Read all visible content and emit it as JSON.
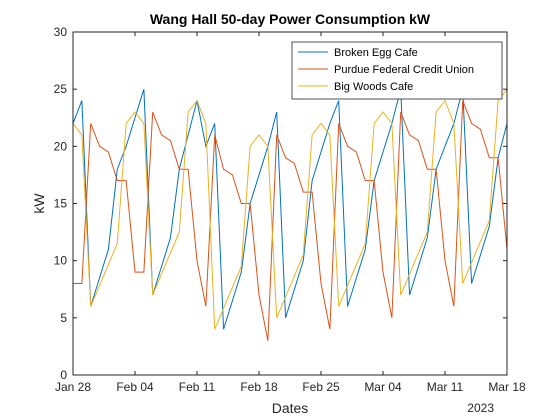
{
  "chart_data": {
    "type": "line",
    "title": "Wang Hall 50-day Power Consumption kW",
    "xlabel": "Dates",
    "ylabel": "kW",
    "year_label": "2023",
    "xlim": [
      "2023-01-28",
      "2023-03-18"
    ],
    "ylim": [
      0,
      30
    ],
    "x_ticks": [
      {
        "date": "2023-01-28",
        "label": "Jan 28"
      },
      {
        "date": "2023-02-04",
        "label": "Feb 04"
      },
      {
        "date": "2023-02-11",
        "label": "Feb 11"
      },
      {
        "date": "2023-02-18",
        "label": "Feb 18"
      },
      {
        "date": "2023-02-25",
        "label": "Feb 25"
      },
      {
        "date": "2023-03-04",
        "label": "Mar 04"
      },
      {
        "date": "2023-03-11",
        "label": "Mar 11"
      },
      {
        "date": "2023-03-18",
        "label": "Mar 18"
      }
    ],
    "y_ticks": [
      0,
      5,
      10,
      15,
      20,
      25,
      30
    ],
    "grid": false,
    "legend_position": "top-right",
    "series": [
      {
        "name": "Broken Egg Cafe",
        "color": "#0072BD",
        "points": [
          [
            "2023-01-28",
            22
          ],
          [
            "2023-01-29",
            24
          ],
          [
            "2023-01-30",
            6
          ],
          [
            "2023-02-01",
            11
          ],
          [
            "2023-02-02",
            18
          ],
          [
            "2023-02-03",
            20
          ],
          [
            "2023-02-05",
            25
          ],
          [
            "2023-02-06",
            7
          ],
          [
            "2023-02-08",
            12
          ],
          [
            "2023-02-09",
            18
          ],
          [
            "2023-02-11",
            24
          ],
          [
            "2023-02-12",
            20
          ],
          [
            "2023-02-13",
            22
          ],
          [
            "2023-02-14",
            4
          ],
          [
            "2023-02-16",
            9
          ],
          [
            "2023-02-17",
            15
          ],
          [
            "2023-02-19",
            20
          ],
          [
            "2023-02-20",
            23
          ],
          [
            "2023-02-21",
            5
          ],
          [
            "2023-02-23",
            10
          ],
          [
            "2023-02-24",
            17
          ],
          [
            "2023-02-26",
            22
          ],
          [
            "2023-02-27",
            24
          ],
          [
            "2023-02-28",
            6
          ],
          [
            "2023-03-02",
            11
          ],
          [
            "2023-03-03",
            17
          ],
          [
            "2023-03-05",
            22
          ],
          [
            "2023-03-06",
            25
          ],
          [
            "2023-03-07",
            7
          ],
          [
            "2023-03-09",
            12
          ],
          [
            "2023-03-10",
            18
          ],
          [
            "2023-03-12",
            22
          ],
          [
            "2023-03-13",
            25
          ],
          [
            "2023-03-14",
            8
          ],
          [
            "2023-03-16",
            13
          ],
          [
            "2023-03-17",
            19
          ],
          [
            "2023-03-18",
            22
          ]
        ]
      },
      {
        "name": "Purdue Federal Credit Union",
        "color": "#D95319",
        "points": [
          [
            "2023-01-28",
            8
          ],
          [
            "2023-01-29",
            8
          ],
          [
            "2023-01-30",
            22
          ],
          [
            "2023-01-31",
            20
          ],
          [
            "2023-02-01",
            19.5
          ],
          [
            "2023-02-02",
            17
          ],
          [
            "2023-02-03",
            17
          ],
          [
            "2023-02-04",
            9
          ],
          [
            "2023-02-05",
            9
          ],
          [
            "2023-02-06",
            23
          ],
          [
            "2023-02-07",
            21
          ],
          [
            "2023-02-08",
            20.5
          ],
          [
            "2023-02-09",
            18
          ],
          [
            "2023-02-10",
            18
          ],
          [
            "2023-02-11",
            10
          ],
          [
            "2023-02-12",
            6
          ],
          [
            "2023-02-13",
            21
          ],
          [
            "2023-02-14",
            18
          ],
          [
            "2023-02-15",
            17.5
          ],
          [
            "2023-02-16",
            15
          ],
          [
            "2023-02-17",
            15
          ],
          [
            "2023-02-18",
            7
          ],
          [
            "2023-02-19",
            3
          ],
          [
            "2023-02-20",
            21
          ],
          [
            "2023-02-21",
            19
          ],
          [
            "2023-02-22",
            18.5
          ],
          [
            "2023-02-23",
            16
          ],
          [
            "2023-02-24",
            16
          ],
          [
            "2023-02-25",
            8
          ],
          [
            "2023-02-26",
            4
          ],
          [
            "2023-02-27",
            22
          ],
          [
            "2023-02-28",
            20
          ],
          [
            "2023-03-01",
            19.5
          ],
          [
            "2023-03-02",
            17
          ],
          [
            "2023-03-03",
            17
          ],
          [
            "2023-03-04",
            9
          ],
          [
            "2023-03-05",
            5
          ],
          [
            "2023-03-06",
            23
          ],
          [
            "2023-03-07",
            21
          ],
          [
            "2023-03-08",
            20.5
          ],
          [
            "2023-03-09",
            18
          ],
          [
            "2023-03-10",
            18
          ],
          [
            "2023-03-11",
            10
          ],
          [
            "2023-03-12",
            6
          ],
          [
            "2023-03-13",
            24
          ],
          [
            "2023-03-14",
            22
          ],
          [
            "2023-03-15",
            21.5
          ],
          [
            "2023-03-16",
            19
          ],
          [
            "2023-03-17",
            19
          ],
          [
            "2023-03-18",
            11
          ]
        ]
      },
      {
        "name": "Big Woods Cafe",
        "color": "#EDB120",
        "points": [
          [
            "2023-01-28",
            22
          ],
          [
            "2023-01-29",
            21
          ],
          [
            "2023-01-30",
            6
          ],
          [
            "2023-02-02",
            11.5
          ],
          [
            "2023-02-03",
            22
          ],
          [
            "2023-02-04",
            23
          ],
          [
            "2023-02-05",
            22
          ],
          [
            "2023-02-06",
            7
          ],
          [
            "2023-02-09",
            12.5
          ],
          [
            "2023-02-10",
            23
          ],
          [
            "2023-02-11",
            24
          ],
          [
            "2023-02-12",
            22
          ],
          [
            "2023-02-13",
            4
          ],
          [
            "2023-02-16",
            9.5
          ],
          [
            "2023-02-17",
            20
          ],
          [
            "2023-02-18",
            21
          ],
          [
            "2023-02-19",
            20
          ],
          [
            "2023-02-20",
            5
          ],
          [
            "2023-02-23",
            10.5
          ],
          [
            "2023-02-24",
            21
          ],
          [
            "2023-02-25",
            22
          ],
          [
            "2023-02-26",
            21
          ],
          [
            "2023-02-27",
            6
          ],
          [
            "2023-03-02",
            11.5
          ],
          [
            "2023-03-03",
            22
          ],
          [
            "2023-03-04",
            23
          ],
          [
            "2023-03-05",
            22
          ],
          [
            "2023-03-06",
            7
          ],
          [
            "2023-03-09",
            12.5
          ],
          [
            "2023-03-10",
            23
          ],
          [
            "2023-03-11",
            24
          ],
          [
            "2023-03-12",
            22
          ],
          [
            "2023-03-13",
            8
          ],
          [
            "2023-03-16",
            13.5
          ],
          [
            "2023-03-17",
            24
          ],
          [
            "2023-03-18",
            25
          ]
        ]
      }
    ]
  }
}
